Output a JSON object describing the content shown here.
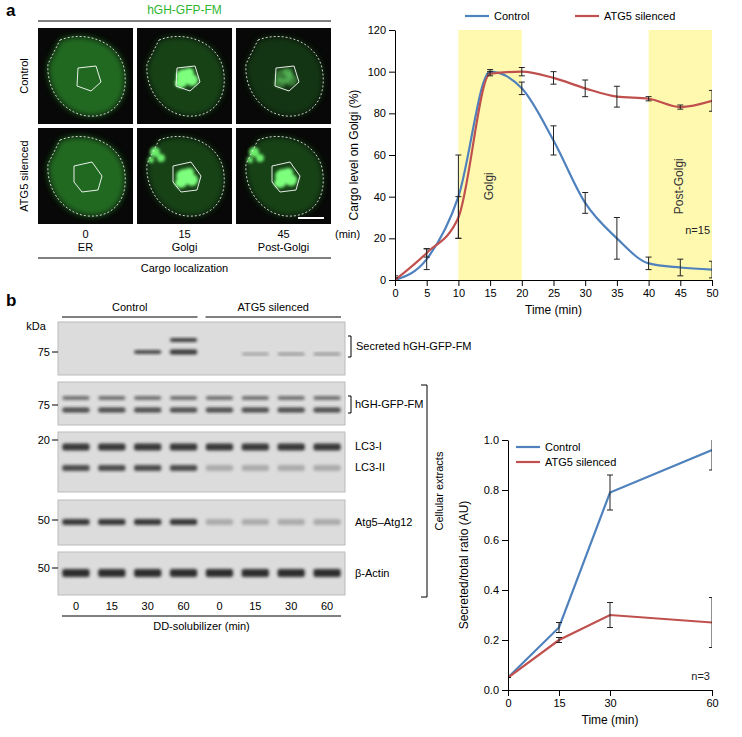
{
  "chart_data": [
    {
      "type": "line",
      "x": [
        0,
        5,
        10,
        15,
        20,
        25,
        30,
        35,
        40,
        45,
        50
      ],
      "xlim": [
        0,
        50
      ],
      "xticks": [
        0,
        5,
        10,
        15,
        20,
        25,
        30,
        35,
        40,
        45,
        50
      ],
      "ylim": [
        0,
        120
      ],
      "yticks": [
        0,
        20,
        40,
        60,
        80,
        100,
        120
      ],
      "x_label": "Time (min)",
      "y_label": "Cargo level on Golgi (%)",
      "legend": "top",
      "series": [
        {
          "name": "Control",
          "color": "#4f81bd",
          "values": [
            0,
            10,
            40,
            100,
            92,
            67,
            37,
            20,
            8,
            6,
            5
          ],
          "errors": [
            2,
            5,
            20,
            1,
            3,
            7,
            5,
            10,
            3,
            4,
            4
          ]
        },
        {
          "name": "ATG5 silenced",
          "color": "#c0504d",
          "values": [
            0,
            13,
            30,
            99,
            100,
            97,
            92,
            88,
            87,
            83,
            86
          ],
          "errors": [
            1,
            2,
            10,
            1,
            2,
            3,
            4,
            5,
            1,
            1,
            5
          ]
        }
      ],
      "bands": [
        {
          "label": "Golgi",
          "range": [
            10,
            20
          ]
        },
        {
          "label": "Post-Golgi",
          "range": [
            40,
            50
          ]
        }
      ],
      "annotation": "n=15"
    },
    {
      "type": "line",
      "x": [
        0,
        15,
        30,
        60
      ],
      "xlim": [
        0,
        60
      ],
      "xticks": [
        0,
        15,
        30,
        60
      ],
      "ylim": [
        0,
        1
      ],
      "yticks": [
        {
          "value": 0,
          "label": "0.0"
        },
        {
          "value": 0.2,
          "label": "0.2"
        },
        {
          "value": 0.4,
          "label": "0.4"
        },
        {
          "value": 0.6,
          "label": "0.6"
        },
        {
          "value": 0.8,
          "label": "0.8"
        },
        {
          "value": 1,
          "label": "1.0"
        }
      ],
      "x_label": "Time (min)",
      "y_label": "Secreted/total ratio (AU)",
      "legend": "top left",
      "series": [
        {
          "name": "Control",
          "color": "#4f81bd",
          "values": [
            0.05,
            0.25,
            0.79,
            0.96
          ],
          "errors": [
            0,
            0.02,
            0.07,
            0.08
          ]
        },
        {
          "name": "ATG5 silenced",
          "color": "#c0504d",
          "values": [
            0.05,
            0.2,
            0.3,
            0.27
          ],
          "errors": [
            0,
            0.01,
            0.05,
            0.1
          ]
        }
      ],
      "annotation": "n=3"
    }
  ],
  "panel_labels": [
    "a",
    "b"
  ],
  "imaging": {
    "title": "hGH-GFP-FM",
    "rows": [
      "Control",
      "ATG5 silenced"
    ],
    "times": [
      0,
      15,
      45
    ],
    "time_unit": "(min)",
    "stages": [
      "ER",
      "Golgi",
      "Post-Golgi"
    ],
    "caption": "Cargo localization"
  },
  "blot": {
    "groups": [
      "Control",
      "ATG5 silenced"
    ],
    "unit": "kDa",
    "markers": [
      75,
      75,
      20,
      50,
      50
    ],
    "secreted_label": "Secreted hGH-GFP-FM",
    "extract_labels": [
      "hGH-GFP-FM",
      "LC3-I",
      "LC3-II",
      "Atg5–Atg12",
      "β-Actin"
    ],
    "extracts_label": "Cellular extracts",
    "lanes": [
      0,
      15,
      30,
      60,
      0,
      15,
      30,
      60
    ],
    "x_label": "DD-solubilizer (min)"
  }
}
